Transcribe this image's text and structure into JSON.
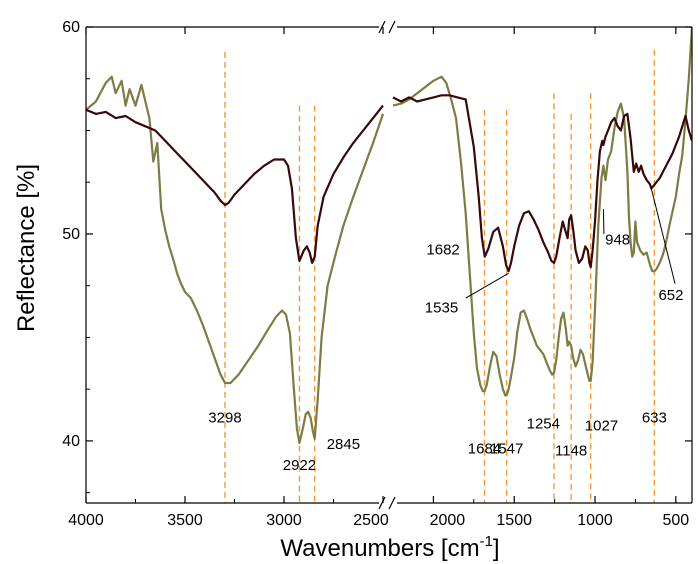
{
  "chart_data": {
    "type": "line",
    "xlabel": "Wavenumbers [cm",
    "xlabel_sup": "-1",
    "xlabel_end": "]",
    "ylabel": "Reflectance [%]",
    "ylim": [
      37,
      60
    ],
    "x_reversed": true,
    "x_broken_axis": true,
    "x_segments": [
      [
        4000,
        2500
      ],
      [
        2250,
        400
      ]
    ],
    "x_ticks_left": [
      4000,
      3500,
      3000,
      2500
    ],
    "x_ticks_right": [
      2000,
      1500,
      1000,
      500
    ],
    "y_ticks": [
      40,
      50,
      60
    ],
    "colors": {
      "dark": "#3a0808",
      "olive": "#7d7c45",
      "dashed": "#f29a3a"
    },
    "dashed_lines": [
      {
        "x": 3298,
        "y_top": 58.8
      },
      {
        "x": 2922,
        "y_top": 56.2
      },
      {
        "x": 2845,
        "y_top": 56.2
      },
      {
        "x": 1684,
        "y_top": 56.0
      },
      {
        "x": 1547,
        "y_top": 56.0
      },
      {
        "x": 1254,
        "y_top": 56.8
      },
      {
        "x": 1148,
        "y_top": 55.8
      },
      {
        "x": 1027,
        "y_top": 56.8
      },
      {
        "x": 633,
        "y_top": 58.9
      }
    ],
    "annotations": [
      {
        "text": "3298",
        "x": 3298,
        "y": 40.9
      },
      {
        "text": "2922",
        "x": 2922,
        "y": 38.6
      },
      {
        "text": "2845",
        "x": 2700,
        "y": 39.6
      },
      {
        "text": "1684",
        "x": 1684,
        "y": 39.4
      },
      {
        "text": "1547",
        "x": 1547,
        "y": 39.4
      },
      {
        "text": "1254",
        "x": 1320,
        "y": 40.6
      },
      {
        "text": "1148",
        "x": 1148,
        "y": 39.3
      },
      {
        "text": "1027",
        "x": 960,
        "y": 40.5
      },
      {
        "text": "633",
        "x": 633,
        "y": 40.9
      },
      {
        "text": "1682",
        "x": 1940,
        "y": 49.0
      },
      {
        "text": "1535",
        "x": 1950,
        "y": 46.2
      },
      {
        "text": "948",
        "x": 860,
        "y": 49.5
      },
      {
        "text": "652",
        "x": 530,
        "y": 46.8
      }
    ],
    "leaders": [
      {
        "from": [
          1800,
          46.9
        ],
        "to": [
          1535,
          48.1
        ]
      },
      {
        "from": [
          505,
          47.6
        ],
        "to": [
          652,
          52.2
        ]
      },
      {
        "from": [
          945,
          50.0
        ],
        "to": [
          948,
          51.2
        ]
      }
    ],
    "series": [
      {
        "color": "dark",
        "x": [
          4000,
          3950,
          3900,
          3850,
          3800,
          3750,
          3700,
          3650,
          3600,
          3550,
          3500,
          3450,
          3400,
          3350,
          3320,
          3298,
          3280,
          3250,
          3200,
          3150,
          3100,
          3050,
          3000,
          2980,
          2960,
          2940,
          2922,
          2900,
          2885,
          2870,
          2858,
          2845,
          2830,
          2800,
          2750,
          2700,
          2650,
          2600,
          2550,
          2500,
          2250,
          2200,
          2150,
          2100,
          2050,
          2000,
          1950,
          1900,
          1850,
          1800,
          1750,
          1720,
          1700,
          1682,
          1660,
          1630,
          1600,
          1570,
          1550,
          1535,
          1520,
          1500,
          1470,
          1440,
          1410,
          1380,
          1350,
          1320,
          1290,
          1270,
          1254,
          1240,
          1220,
          1200,
          1185,
          1170,
          1160,
          1148,
          1135,
          1120,
          1100,
          1080,
          1060,
          1045,
          1035,
          1027,
          1015,
          1000,
          985,
          970,
          955,
          948,
          935,
          920,
          900,
          880,
          860,
          840,
          820,
          800,
          790,
          780,
          770,
          760,
          745,
          730,
          715,
          700,
          680,
          660,
          652,
          640,
          620,
          600,
          580,
          560,
          540,
          520,
          500,
          480,
          460,
          440,
          420,
          400
        ],
        "y": [
          56.0,
          55.8,
          55.9,
          55.6,
          55.7,
          55.4,
          55.2,
          55.0,
          54.5,
          54.0,
          53.5,
          53.0,
          52.5,
          52.0,
          51.6,
          51.4,
          51.5,
          51.9,
          52.4,
          52.9,
          53.3,
          53.6,
          53.6,
          53.3,
          52.2,
          49.8,
          48.7,
          49.2,
          49.4,
          49.1,
          48.6,
          48.9,
          50.4,
          51.8,
          52.9,
          53.7,
          54.4,
          55.0,
          55.6,
          56.2,
          56.6,
          56.4,
          56.6,
          56.4,
          56.5,
          56.6,
          56.7,
          56.7,
          56.6,
          56.5,
          54.2,
          51.8,
          49.8,
          48.9,
          49.3,
          50.1,
          50.3,
          49.4,
          48.5,
          48.2,
          48.6,
          49.4,
          50.4,
          51.0,
          51.1,
          50.7,
          50.2,
          49.6,
          49.1,
          48.7,
          48.6,
          48.9,
          49.8,
          50.6,
          50.2,
          49.8,
          50.7,
          50.9,
          50.2,
          49.2,
          48.6,
          48.8,
          49.4,
          49.2,
          48.6,
          48.4,
          49.2,
          50.6,
          52.6,
          54.0,
          54.5,
          54.3,
          54.7,
          55.0,
          55.4,
          55.6,
          55.2,
          55.0,
          55.7,
          55.8,
          55.2,
          54.6,
          53.8,
          53.0,
          53.4,
          53.0,
          53.3,
          52.9,
          52.6,
          52.4,
          52.2,
          52.3,
          52.5,
          52.7,
          53.0,
          53.3,
          53.6,
          53.9,
          54.3,
          54.7,
          55.2,
          55.7,
          55.0,
          54.5
        ]
      },
      {
        "color": "olive",
        "x": [
          4000,
          3950,
          3900,
          3870,
          3850,
          3820,
          3800,
          3780,
          3750,
          3720,
          3700,
          3680,
          3660,
          3640,
          3620,
          3600,
          3580,
          3560,
          3540,
          3520,
          3500,
          3470,
          3440,
          3410,
          3380,
          3350,
          3320,
          3298,
          3270,
          3230,
          3180,
          3130,
          3080,
          3040,
          3010,
          2990,
          2970,
          2950,
          2935,
          2922,
          2905,
          2890,
          2878,
          2865,
          2855,
          2845,
          2830,
          2810,
          2780,
          2740,
          2700,
          2650,
          2600,
          2550,
          2500,
          2250,
          2200,
          2150,
          2100,
          2050,
          2000,
          1950,
          1920,
          1890,
          1860,
          1830,
          1800,
          1770,
          1750,
          1730,
          1710,
          1695,
          1684,
          1670,
          1650,
          1630,
          1610,
          1590,
          1570,
          1555,
          1547,
          1535,
          1520,
          1500,
          1480,
          1460,
          1440,
          1420,
          1400,
          1380,
          1360,
          1340,
          1320,
          1300,
          1280,
          1265,
          1254,
          1240,
          1225,
          1210,
          1195,
          1180,
          1170,
          1160,
          1148,
          1135,
          1120,
          1105,
          1090,
          1075,
          1060,
          1045,
          1035,
          1027,
          1015,
          1000,
          980,
          960,
          948,
          935,
          920,
          900,
          880,
          860,
          840,
          820,
          800,
          790,
          780,
          770,
          760,
          750,
          740,
          720,
          700,
          680,
          660,
          645,
          633,
          620,
          600,
          580,
          560,
          540,
          520,
          500,
          480,
          460,
          440,
          420,
          400
        ],
        "y": [
          56.0,
          56.4,
          57.3,
          57.6,
          56.8,
          57.4,
          56.2,
          57.0,
          56.2,
          57.2,
          56.4,
          55.6,
          53.5,
          54.4,
          51.2,
          50.2,
          49.4,
          48.8,
          48.1,
          47.6,
          47.2,
          46.9,
          46.3,
          45.6,
          44.8,
          44.0,
          43.2,
          42.8,
          42.8,
          43.2,
          43.9,
          44.6,
          45.4,
          46.0,
          46.3,
          46.1,
          45.2,
          42.5,
          40.6,
          39.9,
          40.6,
          41.3,
          41.4,
          41.1,
          40.5,
          40.1,
          42.0,
          45.0,
          47.5,
          49.0,
          50.4,
          51.8,
          53.1,
          54.4,
          55.8,
          56.2,
          56.3,
          56.5,
          56.8,
          57.1,
          57.4,
          57.6,
          57.3,
          56.5,
          55.6,
          53.5,
          51.0,
          47.5,
          45.2,
          43.5,
          42.7,
          42.4,
          42.4,
          42.7,
          43.6,
          44.3,
          44.1,
          43.2,
          42.5,
          42.2,
          42.2,
          42.5,
          43.1,
          44.0,
          45.3,
          46.2,
          46.3,
          45.9,
          45.4,
          45.0,
          44.6,
          44.4,
          44.2,
          43.8,
          43.4,
          43.2,
          43.3,
          43.9,
          45.0,
          45.9,
          46.2,
          45.4,
          44.6,
          44.8,
          44.6,
          44.0,
          43.6,
          43.9,
          44.4,
          44.2,
          43.7,
          43.2,
          42.9,
          42.9,
          43.8,
          46.4,
          50.4,
          52.7,
          53.3,
          52.6,
          53.6,
          54.0,
          55.1,
          55.9,
          56.3,
          55.6,
          53.0,
          50.8,
          49.6,
          48.9,
          49.1,
          50.6,
          49.6,
          49.2,
          49.0,
          49.1,
          48.5,
          48.2,
          48.2,
          48.3,
          48.6,
          49.0,
          49.6,
          50.4,
          51.1,
          51.8,
          52.9,
          53.8,
          55.5,
          57.5,
          60.0
        ]
      }
    ]
  }
}
